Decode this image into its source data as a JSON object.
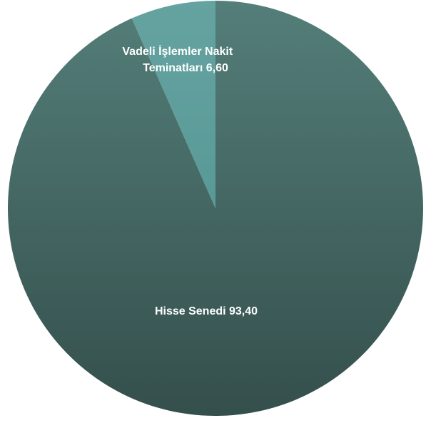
{
  "chart_data": {
    "type": "pie",
    "slices": [
      {
        "label_lines": [
          "Hisse Senedi 93,40"
        ],
        "value": 93.4,
        "color_light": "#547e79",
        "color_dark": "#344f4c"
      },
      {
        "label_lines": [
          "Vadeli İşlemler Nakit",
          "Teminatları 6,60"
        ],
        "value": 6.6,
        "color_light": "#65a3a1",
        "color_dark": "#589996"
      }
    ],
    "start": "12 o'clock",
    "direction": "clockwise",
    "legend": "none",
    "label_color": "#ffffff"
  }
}
